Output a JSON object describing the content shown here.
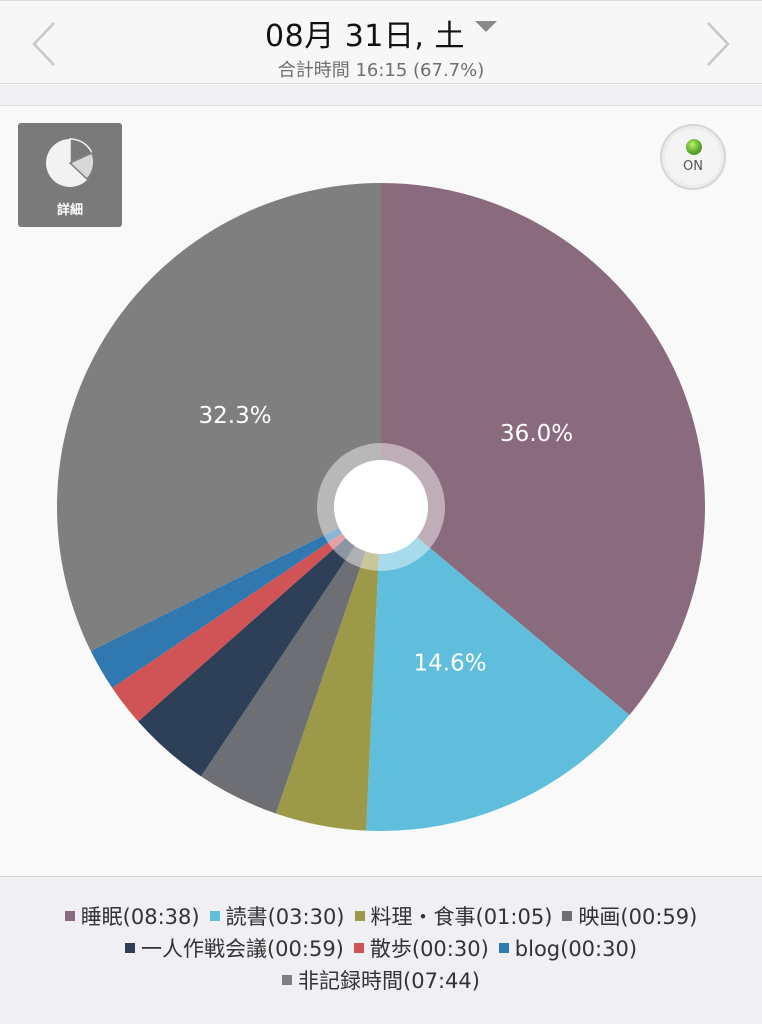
{
  "header": {
    "date_title": "08月 31日, 土",
    "subtitle": "合計時間 16:15 (67.7%)",
    "prev_icon": "chevron-left-icon",
    "next_icon": "chevron-right-icon",
    "dropdown_icon": "triangle-down-icon"
  },
  "detail_button": {
    "label": "詳細",
    "icon": "pie-chart-icon"
  },
  "toggle": {
    "label": "ON",
    "state": true
  },
  "chart_data": {
    "type": "pie",
    "donut_hole": true,
    "start_angle_deg": 0,
    "direction": "clockwise",
    "slices": [
      {
        "label": "睡眠",
        "time": "08:38",
        "value": 518,
        "percent_label": "36.0%",
        "color": "#8a6a7d"
      },
      {
        "label": "読書",
        "time": "03:30",
        "value": 210,
        "percent_label": "14.6%",
        "color": "#5fbedc"
      },
      {
        "label": "料理・食事",
        "time": "01:05",
        "value": 65,
        "percent_label": "",
        "color": "#9c9a48"
      },
      {
        "label": "映画",
        "time": "00:59",
        "value": 59,
        "percent_label": "",
        "color": "#6e6f74"
      },
      {
        "label": "一人作戦会議",
        "time": "00:59",
        "value": 59,
        "percent_label": "",
        "color": "#2e4058"
      },
      {
        "label": "散歩",
        "time": "00:30",
        "value": 30,
        "percent_label": "",
        "color": "#d05355"
      },
      {
        "label": "blog",
        "time": "00:30",
        "value": 30,
        "percent_label": "",
        "color": "#2f78b0"
      },
      {
        "label": "非記録時間",
        "time": "07:44",
        "value": 464,
        "percent_label": "32.3%",
        "color": "#7f7f7f"
      }
    ]
  },
  "legend": {
    "rows": [
      [
        {
          "text": "睡眠(08:38)",
          "color": "#8a6a7d"
        },
        {
          "text": "読書(03:30)",
          "color": "#5fbedc"
        },
        {
          "text": "料理・食事(01:05)",
          "color": "#9c9a48"
        },
        {
          "text": "映画(00:59)",
          "color": "#6e6f74"
        }
      ],
      [
        {
          "text": "一人作戦会議(00:59)",
          "color": "#2e4058"
        },
        {
          "text": "散歩(00:30)",
          "color": "#d05355"
        },
        {
          "text": "blog(00:30)",
          "color": "#2f78b0"
        }
      ],
      [
        {
          "text": "非記録時間(07:44)",
          "color": "#7f7f7f"
        }
      ]
    ]
  }
}
